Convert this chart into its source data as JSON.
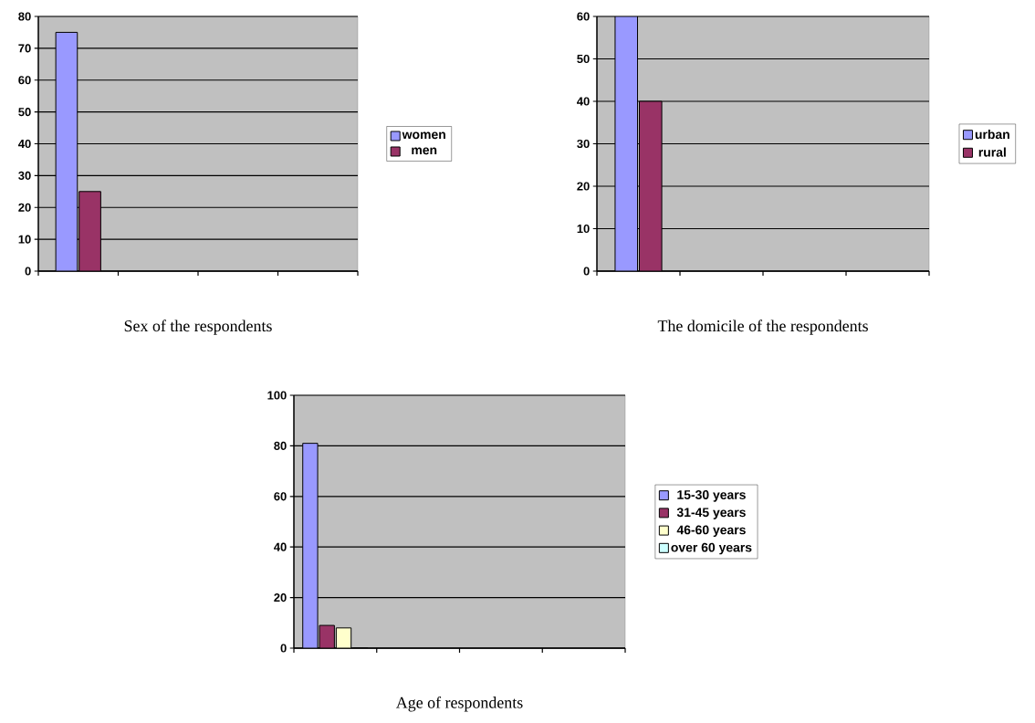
{
  "chart_data": [
    {
      "type": "bar",
      "title": "Sex of the respondents",
      "categories": [
        null,
        null,
        null,
        null
      ],
      "series": [
        {
          "name": "women",
          "color": "#9999ff",
          "values": [
            75,
            null,
            null,
            null
          ]
        },
        {
          "name": "men",
          "color": "#993366",
          "values": [
            25,
            null,
            null,
            null
          ]
        }
      ],
      "ylim": [
        0,
        80
      ],
      "yticks": [
        0,
        10,
        20,
        30,
        40,
        50,
        60,
        70,
        80
      ],
      "grid": "y",
      "legend": "right"
    },
    {
      "type": "bar",
      "title": "The domicile of the respondents",
      "categories": [
        null,
        null,
        null,
        null
      ],
      "series": [
        {
          "name": "urban",
          "color": "#9999ff",
          "values": [
            60,
            null,
            null,
            null
          ]
        },
        {
          "name": "rural",
          "color": "#993366",
          "values": [
            40,
            null,
            null,
            null
          ]
        }
      ],
      "ylim": [
        0,
        60
      ],
      "yticks": [
        0,
        10,
        20,
        30,
        40,
        50,
        60
      ],
      "grid": "y",
      "legend": "right"
    },
    {
      "type": "bar",
      "title": "Age of respondents",
      "categories": [
        null,
        null,
        null,
        null
      ],
      "series": [
        {
          "name": "15-30 years",
          "color": "#9999ff",
          "values": [
            81,
            null,
            null,
            null
          ]
        },
        {
          "name": "31-45 years",
          "color": "#993366",
          "values": [
            9,
            null,
            null,
            null
          ]
        },
        {
          "name": "46-60 years",
          "color": "#ffffcc",
          "values": [
            8,
            null,
            null,
            null
          ]
        },
        {
          "name": "over 60 years",
          "color": "#ccffff",
          "values": [
            0,
            null,
            null,
            null
          ]
        }
      ],
      "ylim": [
        0,
        100
      ],
      "yticks": [
        0,
        20,
        40,
        60,
        80,
        100
      ],
      "grid": "y",
      "legend": "right"
    }
  ]
}
